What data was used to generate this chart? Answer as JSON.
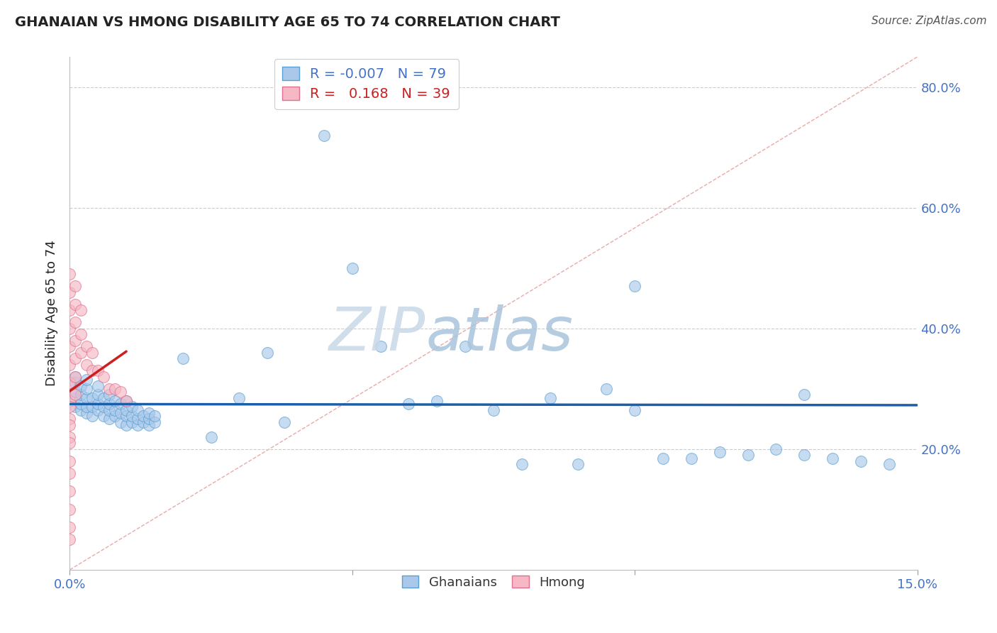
{
  "title": "GHANAIAN VS HMONG DISABILITY AGE 65 TO 74 CORRELATION CHART",
  "source": "Source: ZipAtlas.com",
  "ylabel": "Disability Age 65 to 74",
  "xlim": [
    0.0,
    0.15
  ],
  "ylim": [
    0.0,
    0.85
  ],
  "ytick_positions": [
    0.2,
    0.4,
    0.6,
    0.8
  ],
  "legend_r_ghanaian": "-0.007",
  "legend_n_ghanaian": "79",
  "legend_r_hmong": "0.168",
  "legend_n_hmong": "39",
  "ghanaian_face": "#aac9ea",
  "ghanaian_edge": "#5a9fd4",
  "hmong_face": "#f5b8c4",
  "hmong_edge": "#e07090",
  "reg_gh_color": "#1a5fa8",
  "reg_hm_color": "#cc2020",
  "diag_color": "#e8a0a0",
  "watermark_color": "#dce8f4",
  "title_color": "#222222",
  "source_color": "#555555",
  "ylabel_color": "#222222",
  "tick_color": "#4472c4",
  "grid_color": "#cccccc",
  "legend_gh_text_color": "#4472c4",
  "legend_hm_text_color": "#cc2020",
  "gh_x": [
    0.001,
    0.001,
    0.001,
    0.001,
    0.001,
    0.002,
    0.002,
    0.002,
    0.002,
    0.003,
    0.003,
    0.003,
    0.003,
    0.003,
    0.004,
    0.004,
    0.004,
    0.005,
    0.005,
    0.005,
    0.005,
    0.006,
    0.006,
    0.006,
    0.007,
    0.007,
    0.007,
    0.007,
    0.008,
    0.008,
    0.008,
    0.009,
    0.009,
    0.009,
    0.01,
    0.01,
    0.01,
    0.01,
    0.011,
    0.011,
    0.011,
    0.012,
    0.012,
    0.012,
    0.013,
    0.013,
    0.014,
    0.014,
    0.014,
    0.015,
    0.015,
    0.02,
    0.025,
    0.03,
    0.035,
    0.038,
    0.045,
    0.05,
    0.055,
    0.06,
    0.065,
    0.07,
    0.075,
    0.08,
    0.085,
    0.09,
    0.095,
    0.1,
    0.105,
    0.11,
    0.115,
    0.12,
    0.125,
    0.13,
    0.135,
    0.14,
    0.145,
    0.1,
    0.13
  ],
  "gh_y": [
    0.27,
    0.285,
    0.295,
    0.31,
    0.32,
    0.265,
    0.275,
    0.29,
    0.305,
    0.26,
    0.27,
    0.285,
    0.3,
    0.315,
    0.255,
    0.27,
    0.285,
    0.265,
    0.275,
    0.29,
    0.305,
    0.255,
    0.27,
    0.285,
    0.25,
    0.265,
    0.275,
    0.29,
    0.255,
    0.265,
    0.28,
    0.245,
    0.26,
    0.275,
    0.24,
    0.255,
    0.265,
    0.28,
    0.245,
    0.255,
    0.27,
    0.24,
    0.25,
    0.265,
    0.245,
    0.255,
    0.24,
    0.25,
    0.26,
    0.245,
    0.255,
    0.35,
    0.22,
    0.285,
    0.36,
    0.245,
    0.72,
    0.5,
    0.37,
    0.275,
    0.28,
    0.37,
    0.265,
    0.175,
    0.285,
    0.175,
    0.3,
    0.265,
    0.185,
    0.185,
    0.195,
    0.19,
    0.2,
    0.19,
    0.185,
    0.18,
    0.175,
    0.47,
    0.29
  ],
  "hm_x": [
    0.0,
    0.0,
    0.0,
    0.0,
    0.0,
    0.0,
    0.0,
    0.0,
    0.0,
    0.0,
    0.0,
    0.0,
    0.0,
    0.001,
    0.001,
    0.001,
    0.001,
    0.001,
    0.001,
    0.001,
    0.002,
    0.002,
    0.002,
    0.003,
    0.003,
    0.004,
    0.004,
    0.005,
    0.006,
    0.007,
    0.008,
    0.009,
    0.01,
    0.0,
    0.0,
    0.0,
    0.0,
    0.0,
    0.0
  ],
  "hm_y": [
    0.49,
    0.46,
    0.43,
    0.4,
    0.37,
    0.34,
    0.31,
    0.28,
    0.25,
    0.22,
    0.16,
    0.1,
    0.05,
    0.47,
    0.44,
    0.41,
    0.38,
    0.35,
    0.32,
    0.29,
    0.43,
    0.39,
    0.36,
    0.37,
    0.34,
    0.36,
    0.33,
    0.33,
    0.32,
    0.3,
    0.3,
    0.295,
    0.28,
    0.27,
    0.24,
    0.21,
    0.18,
    0.13,
    0.07
  ]
}
